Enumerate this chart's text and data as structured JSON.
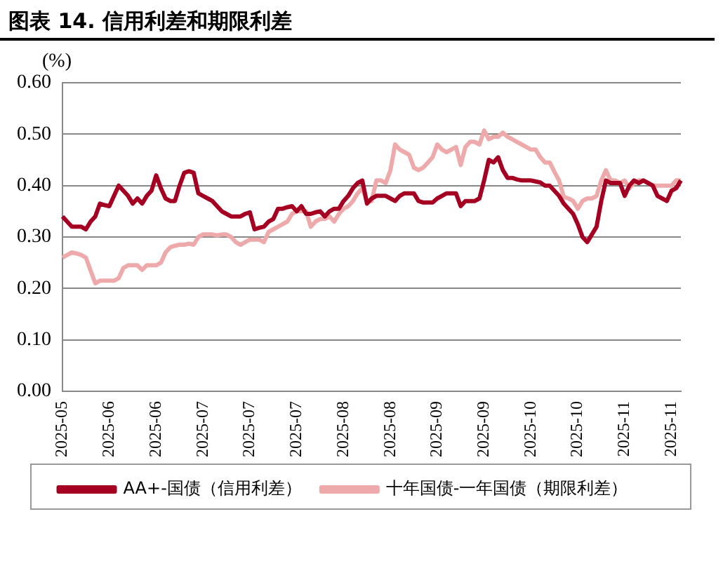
{
  "chart_data": {
    "type": "line",
    "title": "图表 14. 信用利差和期限利差",
    "ylabel": "(%)",
    "categories": [
      "2025-05",
      null,
      null,
      null,
      null,
      null,
      null,
      null,
      null,
      null,
      "2025-06",
      null,
      null,
      null,
      null,
      null,
      null,
      null,
      null,
      null,
      "2025-06",
      null,
      null,
      null,
      null,
      null,
      null,
      null,
      null,
      null,
      "2025-07",
      null,
      null,
      null,
      null,
      null,
      null,
      null,
      null,
      null,
      "2025-07",
      null,
      null,
      null,
      null,
      null,
      null,
      null,
      null,
      null,
      "2025-07",
      null,
      null,
      null,
      null,
      null,
      null,
      null,
      null,
      null,
      "2025-08",
      null,
      null,
      null,
      null,
      null,
      null,
      null,
      null,
      null,
      "2025-08",
      null,
      null,
      null,
      null,
      null,
      null,
      null,
      null,
      null,
      "2025-09",
      null,
      null,
      null,
      null,
      null,
      null,
      null,
      null,
      null,
      "2025-09",
      null,
      null,
      null,
      null,
      null,
      null,
      null,
      null,
      null,
      "2025-10",
      null,
      null,
      null,
      null,
      null,
      null,
      null,
      null,
      null,
      "2025-10",
      null,
      null,
      null,
      null,
      null,
      null,
      null,
      null,
      null,
      "2025-11",
      null,
      null,
      null,
      null,
      null,
      null,
      null,
      null,
      null,
      "2025-11",
      null,
      null
    ],
    "series": [
      {
        "name": "AA+-国债（信用利差）",
        "color": "#a50021",
        "values": [
          0.34,
          0.33,
          0.32,
          0.32,
          0.32,
          0.315,
          0.33,
          0.34,
          0.365,
          0.362,
          0.36,
          0.38,
          0.4,
          0.39,
          0.38,
          0.365,
          0.375,
          0.365,
          0.38,
          0.39,
          0.42,
          0.395,
          0.375,
          0.37,
          0.37,
          0.4,
          0.425,
          0.428,
          0.425,
          0.385,
          0.38,
          0.375,
          0.37,
          0.36,
          0.35,
          0.345,
          0.34,
          0.34,
          0.34,
          0.345,
          0.348,
          0.315,
          0.318,
          0.32,
          0.33,
          0.335,
          0.355,
          0.355,
          0.358,
          0.36,
          0.35,
          0.36,
          0.345,
          0.345,
          0.348,
          0.35,
          0.34,
          0.35,
          0.355,
          0.355,
          0.37,
          0.38,
          0.395,
          0.405,
          0.41,
          0.365,
          0.375,
          0.38,
          0.38,
          0.38,
          0.375,
          0.37,
          0.38,
          0.385,
          0.385,
          0.385,
          0.37,
          0.367,
          0.367,
          0.367,
          0.375,
          0.38,
          0.385,
          0.385,
          0.385,
          0.36,
          0.37,
          0.37,
          0.37,
          0.375,
          0.41,
          0.45,
          0.445,
          0.455,
          0.43,
          0.415,
          0.415,
          0.412,
          0.41,
          0.41,
          0.41,
          0.408,
          0.406,
          0.4,
          0.4,
          0.39,
          0.38,
          0.365,
          0.355,
          0.345,
          0.325,
          0.3,
          0.29,
          0.305,
          0.32,
          0.37,
          0.41,
          0.405,
          0.405,
          0.405,
          0.38,
          0.4,
          0.41,
          0.405,
          0.41,
          0.405,
          0.4,
          0.38,
          0.375,
          0.37,
          0.39,
          0.395,
          0.41
        ]
      },
      {
        "name": "十年国债-一年国债（期限利差）",
        "color": "#eeaaaa",
        "values": [
          0.26,
          0.265,
          0.27,
          0.268,
          0.265,
          0.26,
          0.235,
          0.21,
          0.215,
          0.215,
          0.215,
          0.215,
          0.22,
          0.24,
          0.245,
          0.245,
          0.245,
          0.236,
          0.245,
          0.245,
          0.245,
          0.25,
          0.27,
          0.28,
          0.283,
          0.285,
          0.285,
          0.287,
          0.285,
          0.3,
          0.305,
          0.305,
          0.305,
          0.303,
          0.305,
          0.305,
          0.3,
          0.29,
          0.285,
          0.29,
          0.295,
          0.295,
          0.295,
          0.29,
          0.31,
          0.315,
          0.32,
          0.325,
          0.33,
          0.345,
          0.35,
          0.35,
          0.35,
          0.32,
          0.33,
          0.335,
          0.335,
          0.34,
          0.33,
          0.345,
          0.355,
          0.36,
          0.37,
          0.385,
          0.395,
          0.37,
          0.37,
          0.41,
          0.41,
          0.405,
          0.43,
          0.48,
          0.47,
          0.465,
          0.46,
          0.435,
          0.43,
          0.435,
          0.445,
          0.455,
          0.48,
          0.47,
          0.465,
          0.47,
          0.475,
          0.44,
          0.475,
          0.485,
          0.485,
          0.48,
          0.507,
          0.49,
          0.495,
          0.495,
          0.503,
          0.495,
          0.49,
          0.485,
          0.48,
          0.475,
          0.47,
          0.47,
          0.455,
          0.445,
          0.445,
          0.427,
          0.41,
          0.378,
          0.375,
          0.37,
          0.355,
          0.37,
          0.375,
          0.375,
          0.38,
          0.41,
          0.43,
          0.41,
          0.41,
          0.405,
          0.41,
          0.395,
          0.405,
          0.41,
          0.41,
          0.405,
          0.4,
          0.4,
          0.4,
          0.4,
          0.4,
          0.41,
          0.41
        ]
      }
    ],
    "ylim": [
      0,
      0.6
    ],
    "yticks": [
      {
        "value": 0,
        "label": "0.00"
      },
      {
        "value": 0.1,
        "label": "0.10"
      },
      {
        "value": 0.2,
        "label": "0.20"
      },
      {
        "value": 0.3,
        "label": "0.30"
      },
      {
        "value": 0.4,
        "label": "0.40"
      },
      {
        "value": 0.5,
        "label": "0.50"
      },
      {
        "value": 0.6,
        "label": "0.60"
      }
    ],
    "grid": "y",
    "legend": "bottom",
    "marker": "none",
    "line_style": "solid"
  }
}
